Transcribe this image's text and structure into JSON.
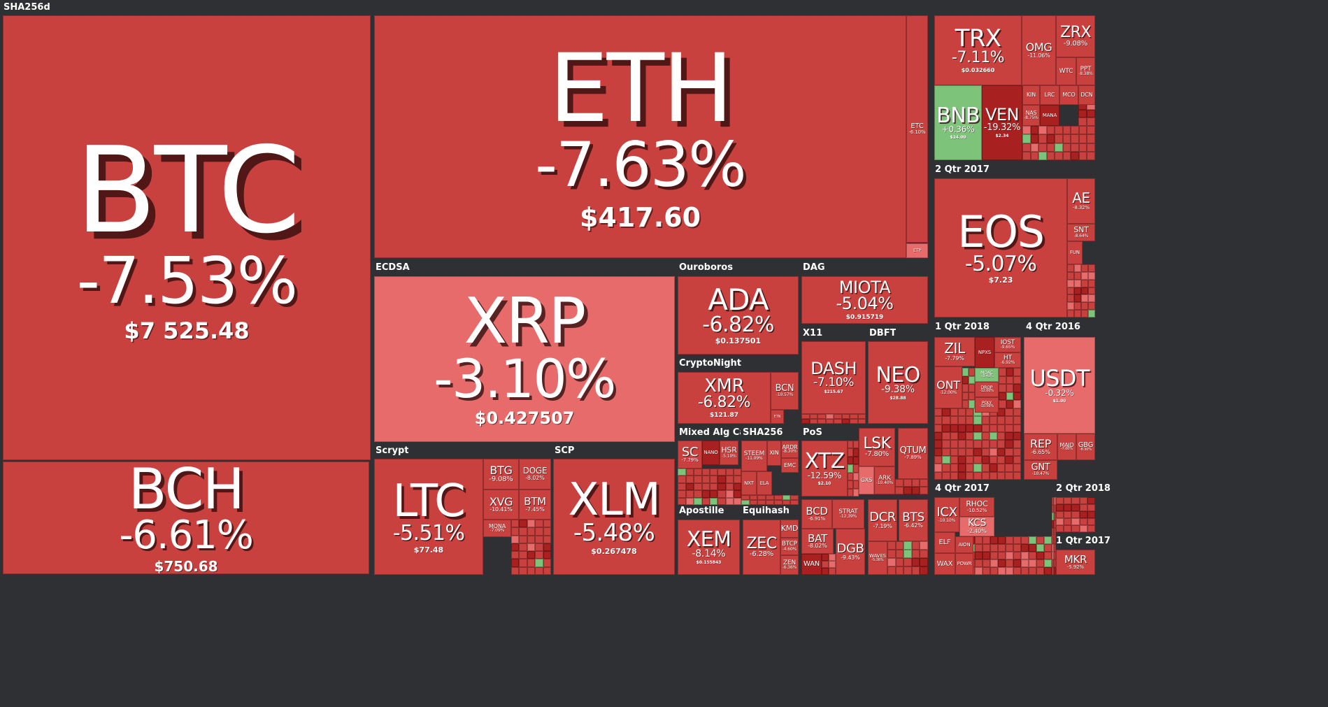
{
  "colors": {
    "background": "#2f3033",
    "down": "#c9413f",
    "down_strong": "#a8201f",
    "down_light": "#e86b6b",
    "up": "#7ec37a"
  },
  "groups": [
    {
      "label": "SHA256d"
    },
    {
      "label": "ECDSA"
    },
    {
      "label": "Ouroboros"
    },
    {
      "label": "DAG"
    },
    {
      "label": "CryptoNight"
    },
    {
      "label": "X11"
    },
    {
      "label": "DBFT"
    },
    {
      "label": "Scrypt"
    },
    {
      "label": "SCP"
    },
    {
      "label": "Mixed Alg Cat..."
    },
    {
      "label": "SHA256"
    },
    {
      "label": "PoS"
    },
    {
      "label": "Apostille"
    },
    {
      "label": "Equihash"
    },
    {
      "label": "2 Qtr 2017"
    },
    {
      "label": "1 Qtr 2018"
    },
    {
      "label": "4 Qtr 2016"
    },
    {
      "label": "4 Qtr 2017"
    },
    {
      "label": "2 Qtr 2018"
    },
    {
      "label": "1 Qtr 2017"
    }
  ],
  "chart_data": {
    "type": "heatmap",
    "tiles": [
      {
        "symbol": "BTC",
        "change": "-7.53%",
        "price": "$7 525.48",
        "change_pct": -7.53
      },
      {
        "symbol": "BCH",
        "change": "-6.61%",
        "price": "$750.68",
        "change_pct": -6.61
      },
      {
        "symbol": "ETH",
        "change": "-7.63%",
        "price": "$417.60",
        "change_pct": -7.63
      },
      {
        "symbol": "ETC",
        "change": "-6.10%",
        "price": "",
        "change_pct": -6.1
      },
      {
        "symbol": "ETP",
        "change": "",
        "price": "",
        "change_pct": -3.0
      },
      {
        "symbol": "XRP",
        "change": "-3.10%",
        "price": "$0.427507",
        "change_pct": -3.1
      },
      {
        "symbol": "LTC",
        "change": "-5.51%",
        "price": "$77.48",
        "change_pct": -5.51
      },
      {
        "symbol": "BTG",
        "change": "-9.08%",
        "price": "",
        "change_pct": -9.08
      },
      {
        "symbol": "DOGE",
        "change": "-8.02%",
        "price": "",
        "change_pct": -8.02
      },
      {
        "symbol": "XVG",
        "change": "-10.41%",
        "price": "",
        "change_pct": -10.41
      },
      {
        "symbol": "BTM",
        "change": "-7.45%",
        "price": "",
        "change_pct": -7.45
      },
      {
        "symbol": "MONA",
        "change": "-7.09%",
        "price": "",
        "change_pct": -7.09
      },
      {
        "symbol": "XLM",
        "change": "-5.48%",
        "price": "$0.267478",
        "change_pct": -5.48
      },
      {
        "symbol": "ADA",
        "change": "-6.82%",
        "price": "$0.137501",
        "change_pct": -6.82
      },
      {
        "symbol": "MIOTA",
        "change": "-5.04%",
        "price": "$0.915719",
        "change_pct": -5.04
      },
      {
        "symbol": "XMR",
        "change": "-6.82%",
        "price": "$121.87",
        "change_pct": -6.82
      },
      {
        "symbol": "BCN",
        "change": "-10.57%",
        "price": "",
        "change_pct": -10.57
      },
      {
        "symbol": "ETN",
        "change": "",
        "price": "",
        "change_pct": -6.0
      },
      {
        "symbol": "DASH",
        "change": "-7.10%",
        "price": "$215.67",
        "change_pct": -7.1
      },
      {
        "symbol": "NEO",
        "change": "-9.38%",
        "price": "$28.88",
        "change_pct": -9.38
      },
      {
        "symbol": "SC",
        "change": "-7.79%",
        "price": "",
        "change_pct": -7.79
      },
      {
        "symbol": "NANO",
        "change": "",
        "price": "",
        "change_pct": -12.0
      },
      {
        "symbol": "HSR",
        "change": "-5.10%",
        "price": "",
        "change_pct": -5.1
      },
      {
        "symbol": "STEEM",
        "change": "-11.09%",
        "price": "",
        "change_pct": -11.09
      },
      {
        "symbol": "XIN",
        "change": "",
        "price": "",
        "change_pct": -7.0
      },
      {
        "symbol": "ARDR",
        "change": "-8.30%",
        "price": "",
        "change_pct": -8.3
      },
      {
        "symbol": "EMC",
        "change": "",
        "price": "",
        "change_pct": -7.0
      },
      {
        "symbol": "NXT",
        "change": "",
        "price": "",
        "change_pct": -7.0
      },
      {
        "symbol": "ELA",
        "change": "",
        "price": "",
        "change_pct": -7.0
      },
      {
        "symbol": "XTZ",
        "change": "-12.59%",
        "price": "$2.10",
        "change_pct": -12.59
      },
      {
        "symbol": "LSK",
        "change": "-7.80%",
        "price": "",
        "change_pct": -7.8
      },
      {
        "symbol": "GXS",
        "change": "",
        "price": "",
        "change_pct": -3.0
      },
      {
        "symbol": "ARK",
        "change": "-10.40%",
        "price": "",
        "change_pct": -10.4
      },
      {
        "symbol": "QTUM",
        "change": "-7.89%",
        "price": "",
        "change_pct": -7.89
      },
      {
        "symbol": "XEM",
        "change": "-8.14%",
        "price": "$0.155843",
        "change_pct": -8.14
      },
      {
        "symbol": "ZEC",
        "change": "-6.28%",
        "price": "",
        "change_pct": -6.28
      },
      {
        "symbol": "KMD",
        "change": "-9.00%",
        "price": "",
        "change_pct": -9.0
      },
      {
        "symbol": "BTCP",
        "change": "-4.60%",
        "price": "",
        "change_pct": -4.6
      },
      {
        "symbol": "ZEN",
        "change": "-6.36%",
        "price": "",
        "change_pct": -6.36
      },
      {
        "symbol": "BCD",
        "change": "-6.91%",
        "price": "",
        "change_pct": -6.91
      },
      {
        "symbol": "STRAT",
        "change": "-12.39%",
        "price": "",
        "change_pct": -12.39
      },
      {
        "symbol": "DCR",
        "change": "-7.19%",
        "price": "",
        "change_pct": -7.19
      },
      {
        "symbol": "BTS",
        "change": "-6.42%",
        "price": "",
        "change_pct": -6.42
      },
      {
        "symbol": "BAT",
        "change": "-8.02%",
        "price": "",
        "change_pct": -8.02
      },
      {
        "symbol": "WAN",
        "change": "",
        "price": "",
        "change_pct": -9.0
      },
      {
        "symbol": "DGB",
        "change": "-9.43%",
        "price": "",
        "change_pct": -9.43
      },
      {
        "symbol": "WAVES",
        "change": "-5.36%",
        "price": "",
        "change_pct": -5.36
      },
      {
        "symbol": "TRX",
        "change": "-7.11%",
        "price": "$0.032660",
        "change_pct": -7.11
      },
      {
        "symbol": "OMG",
        "change": "-11.06%",
        "price": "",
        "change_pct": -11.06
      },
      {
        "symbol": "ZRX",
        "change": "-9.08%",
        "price": "",
        "change_pct": -9.08
      },
      {
        "symbol": "WTC",
        "change": "",
        "price": "",
        "change_pct": -9.0
      },
      {
        "symbol": "PPT",
        "change": "-8.38%",
        "price": "",
        "change_pct": -8.38
      },
      {
        "symbol": "BNB",
        "change": "+0.36%",
        "price": "$14.00",
        "change_pct": 0.36
      },
      {
        "symbol": "VEN",
        "change": "-19.32%",
        "price": "$2.34",
        "change_pct": -19.32
      },
      {
        "symbol": "KIN",
        "change": "",
        "price": "",
        "change_pct": -8.0
      },
      {
        "symbol": "LRC",
        "change": "",
        "price": "",
        "change_pct": -8.0
      },
      {
        "symbol": "MCO",
        "change": "",
        "price": "",
        "change_pct": -8.0
      },
      {
        "symbol": "DCN",
        "change": "",
        "price": "",
        "change_pct": -8.0
      },
      {
        "symbol": "NAS",
        "change": "-8.75%",
        "price": "",
        "change_pct": -8.75
      },
      {
        "symbol": "MANA",
        "change": "",
        "price": "",
        "change_pct": -12.0
      },
      {
        "symbol": "EOS",
        "change": "-5.07%",
        "price": "$7.23",
        "change_pct": -5.07
      },
      {
        "symbol": "AE",
        "change": "-8.32%",
        "price": "",
        "change_pct": -8.32
      },
      {
        "symbol": "SNT",
        "change": "-8.64%",
        "price": "",
        "change_pct": -8.64
      },
      {
        "symbol": "FUN",
        "change": "",
        "price": "",
        "change_pct": -8.0
      },
      {
        "symbol": "ZIL",
        "change": "-7.79%",
        "price": "",
        "change_pct": -7.79
      },
      {
        "symbol": "IOST",
        "change": "-9.65%",
        "price": "",
        "change_pct": -9.65
      },
      {
        "symbol": "HT",
        "change": "-6.92%",
        "price": "",
        "change_pct": -6.92
      },
      {
        "symbol": "NPXS",
        "change": "",
        "price": "",
        "change_pct": -12.0
      },
      {
        "symbol": "ONT",
        "change": "-12.00%",
        "price": "",
        "change_pct": -12.0
      },
      {
        "symbol": "MOAC",
        "change": "+0.43%",
        "price": "",
        "change_pct": 0.43
      },
      {
        "symbol": "DROP",
        "change": "-12.00%",
        "price": "",
        "change_pct": -12.0
      },
      {
        "symbol": "POLY",
        "change": "-10.56%",
        "price": "",
        "change_pct": -10.56
      },
      {
        "symbol": "USDT",
        "change": "-0.32%",
        "price": "$1.00",
        "change_pct": -0.32
      },
      {
        "symbol": "REP",
        "change": "-6.65%",
        "price": "",
        "change_pct": -6.65
      },
      {
        "symbol": "MAID",
        "change": "-7.00%",
        "price": "",
        "change_pct": -7.0
      },
      {
        "symbol": "GBG",
        "change": "-8.30%",
        "price": "",
        "change_pct": -8.3
      },
      {
        "symbol": "GNT",
        "change": "-10.47%",
        "price": "",
        "change_pct": -10.47
      },
      {
        "symbol": "ICX",
        "change": "-10.10%",
        "price": "",
        "change_pct": -10.1
      },
      {
        "symbol": "RHOC",
        "change": "-10.52%",
        "price": "",
        "change_pct": -10.52
      },
      {
        "symbol": "KCS",
        "change": "-2.40%",
        "price": "",
        "change_pct": -2.4
      },
      {
        "symbol": "ELF",
        "change": "",
        "price": "",
        "change_pct": -8.0
      },
      {
        "symbol": "AION",
        "change": "",
        "price": "",
        "change_pct": -8.0
      },
      {
        "symbol": "WAX",
        "change": "",
        "price": "",
        "change_pct": -8.0
      },
      {
        "symbol": "POWR",
        "change": "",
        "price": "",
        "change_pct": -8.0
      },
      {
        "symbol": "MKR",
        "change": "-5.92%",
        "price": "",
        "change_pct": -5.92
      }
    ]
  }
}
